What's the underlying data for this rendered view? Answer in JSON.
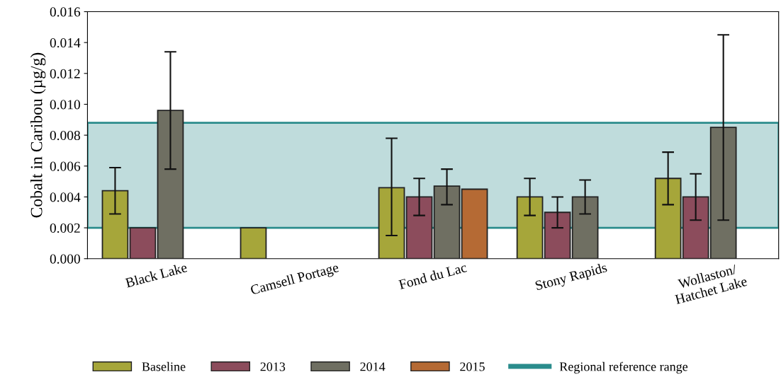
{
  "chart_data": {
    "type": "bar",
    "ylabel": "Cobalt in Caribou (µg/g)",
    "categories": [
      "Black Lake",
      "Camsell Portage",
      "Fond du Lac",
      "Stony Rapids",
      "Wollaston/\nHatchet Lake"
    ],
    "series": [
      {
        "name": "Baseline",
        "color": "#a6a63a",
        "values": [
          0.0044,
          0.002,
          0.0046,
          0.004,
          0.0052
        ],
        "errors": [
          [
            0.0029,
            0.0059
          ],
          null,
          [
            0.0015,
            0.0078
          ],
          [
            0.0028,
            0.0052
          ],
          [
            0.0035,
            0.0069
          ]
        ]
      },
      {
        "name": "2013",
        "color": "#8c4c5c",
        "values": [
          0.002,
          null,
          0.004,
          0.003,
          0.004
        ],
        "errors": [
          null,
          null,
          [
            0.0028,
            0.0052
          ],
          [
            0.002,
            0.004
          ],
          [
            0.0025,
            0.0055
          ]
        ]
      },
      {
        "name": "2014",
        "color": "#6f6f62",
        "values": [
          0.0096,
          null,
          0.0047,
          0.004,
          0.0085
        ],
        "errors": [
          [
            0.0058,
            0.0134
          ],
          null,
          [
            0.0035,
            0.0058
          ],
          [
            0.0029,
            0.0051
          ],
          [
            0.0025,
            0.0145
          ]
        ]
      },
      {
        "name": "2015",
        "color": "#b56a34",
        "values": [
          null,
          null,
          0.0045,
          null,
          null
        ]
      }
    ],
    "ylim": [
      0,
      0.016
    ],
    "yticks": [
      {
        "value": 0,
        "label": "0.000"
      },
      {
        "value": 0.002,
        "label": "0.002"
      },
      {
        "value": 0.004,
        "label": "0.004"
      },
      {
        "value": 0.006,
        "label": "0.006"
      },
      {
        "value": 0.008,
        "label": "0.008"
      },
      {
        "value": 0.01,
        "label": "0.010"
      },
      {
        "value": 0.012,
        "label": "0.012"
      },
      {
        "value": 0.014,
        "label": "0.014"
      },
      {
        "value": 0.016,
        "label": "0.016"
      }
    ],
    "bands": [
      {
        "axis": "y",
        "from": 0.002,
        "to": 0.0088,
        "label": "Regional reference range",
        "color": "#2a8c8c"
      }
    ],
    "grid": false,
    "legend": "bottom"
  }
}
